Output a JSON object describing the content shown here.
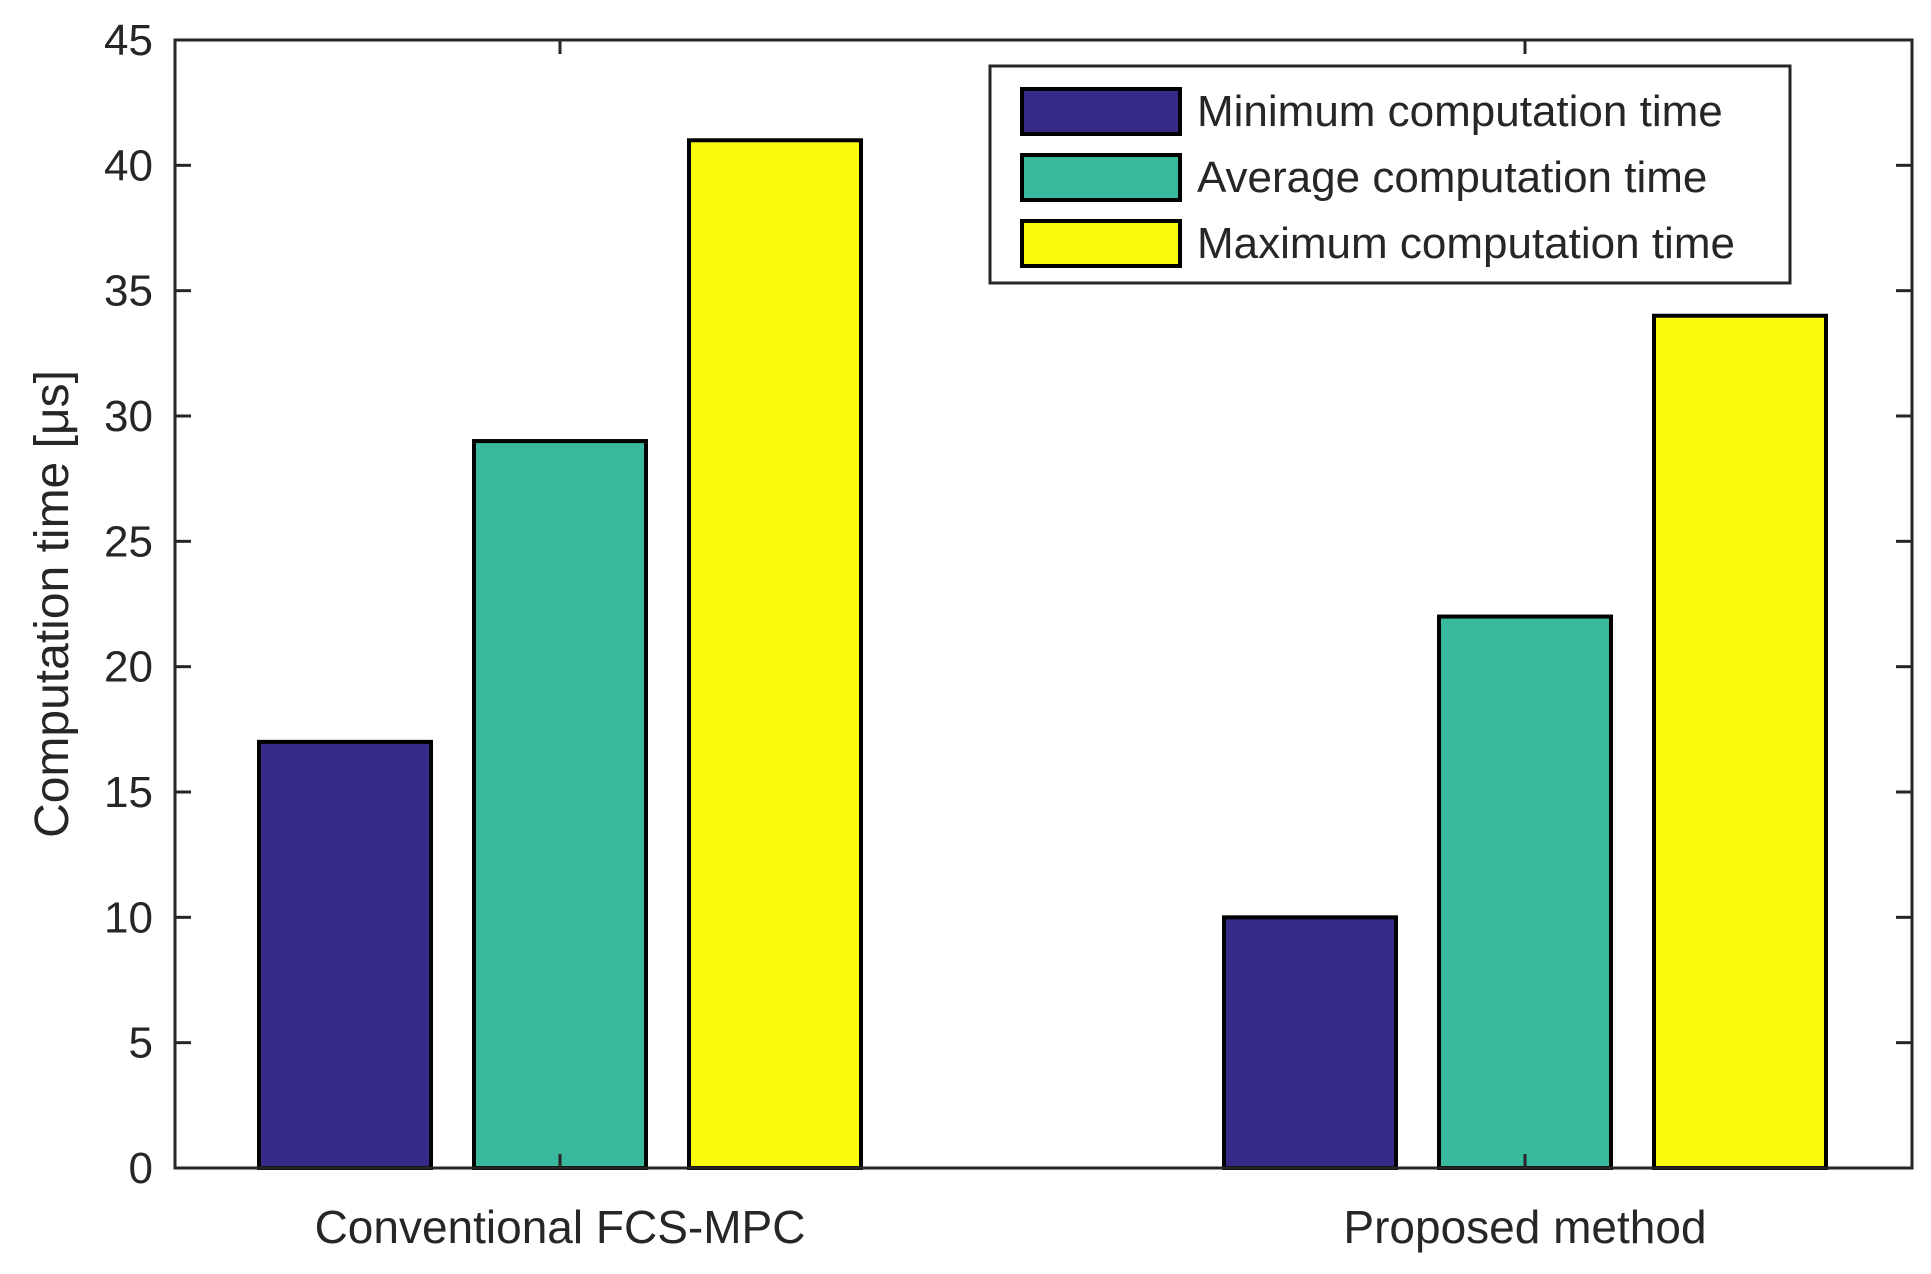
{
  "chart_data": {
    "type": "bar",
    "title": "",
    "xlabel": "",
    "ylabel": "Computation time [μs]",
    "categories": [
      "Conventional FCS-MPC",
      "Proposed method"
    ],
    "series": [
      {
        "name": "Minimum computation time",
        "color": "#352A87",
        "values": [
          17,
          10
        ]
      },
      {
        "name": "Average computation time",
        "color": "#38B99E",
        "values": [
          29,
          22
        ]
      },
      {
        "name": "Maximum computation time",
        "color": "#F9FB0E",
        "values": [
          41,
          34
        ]
      }
    ],
    "ylim": [
      0,
      45
    ],
    "yticks": [
      0,
      5,
      10,
      15,
      20,
      25,
      30,
      35,
      40,
      45
    ],
    "grid": false,
    "legend_position": "top-right"
  }
}
